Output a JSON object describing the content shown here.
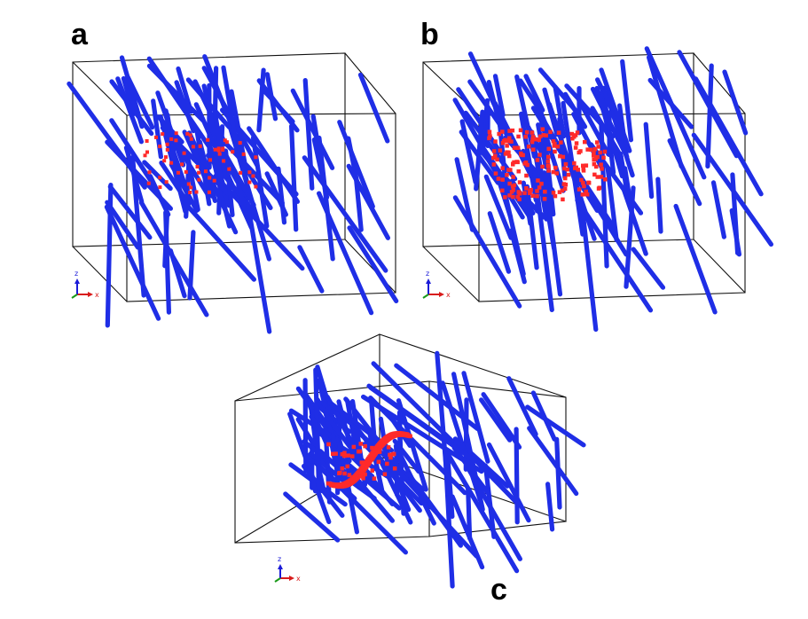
{
  "panels": [
    {
      "id": "a",
      "label": "a",
      "red_density": "sparse",
      "view": "front"
    },
    {
      "id": "b",
      "label": "b",
      "red_density": "dense",
      "view": "front"
    },
    {
      "id": "c",
      "label": "c",
      "red_density": "cluster",
      "view": "oblique"
    }
  ],
  "axis_triad": {
    "x": "x",
    "y": "y",
    "z": "z"
  },
  "colors": {
    "trace": "#1f2ee6",
    "points": "#ff2a2a",
    "box": "#111111",
    "axis_x": "#d81b1b",
    "axis_y": "#1a9a1a",
    "axis_z": "#1a1ad8"
  }
}
